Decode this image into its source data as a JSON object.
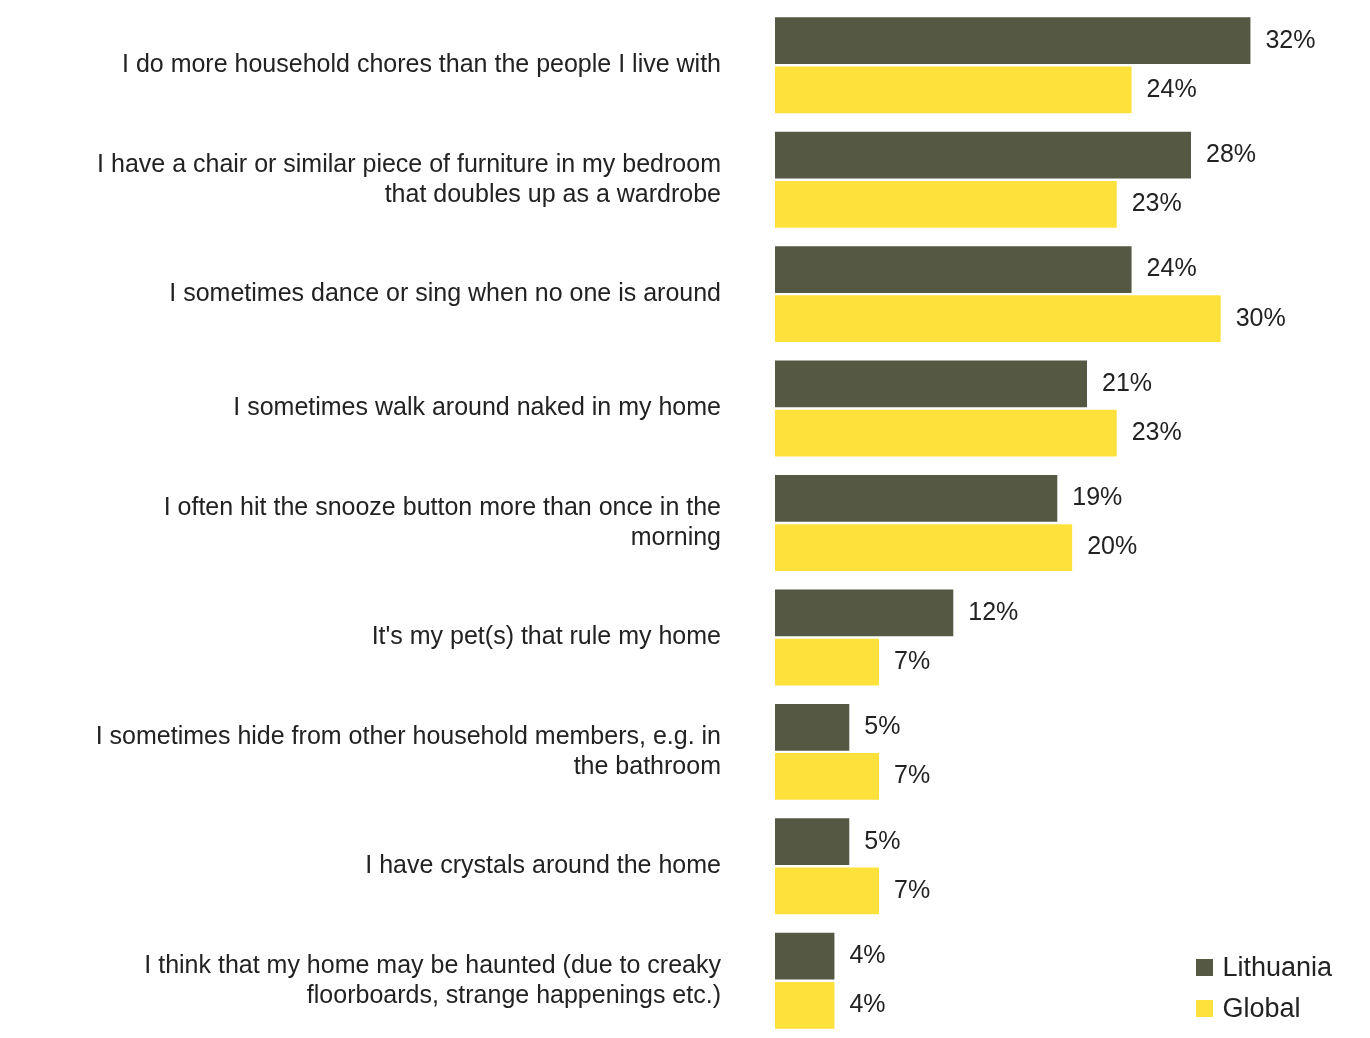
{
  "chart_data": {
    "type": "bar",
    "orientation": "horizontal",
    "categories": [
      "I do more household chores than the people I live with",
      "I have a chair or similar piece of furniture in my bedroom that doubles up as a wardrobe",
      "I sometimes dance or sing when no one is around",
      "I sometimes walk around naked in my home",
      "I often hit the snooze button more than once in the morning",
      "It's my pet(s) that rule my home",
      "I sometimes hide from other household members, e.g. in the bathroom",
      "I have crystals around the home",
      "I think that my home may be haunted (due to creaky floorboards, strange happenings etc.)"
    ],
    "series": [
      {
        "name": "Lithuania",
        "color": "#555843",
        "values": [
          32,
          28,
          24,
          21,
          19,
          12,
          5,
          5,
          4
        ],
        "value_labels": [
          "32%",
          "28%",
          "24%",
          "21%",
          "19%",
          "12%",
          "5%",
          "5%",
          "4%"
        ]
      },
      {
        "name": "Global",
        "color": "#ffe13c",
        "values": [
          24,
          23,
          30,
          23,
          20,
          7,
          7,
          7,
          4
        ],
        "value_labels": [
          "24%",
          "23%",
          "30%",
          "23%",
          "20%",
          "7%",
          "7%",
          "7%",
          "4%"
        ]
      }
    ],
    "legend": "bottom right"
  }
}
